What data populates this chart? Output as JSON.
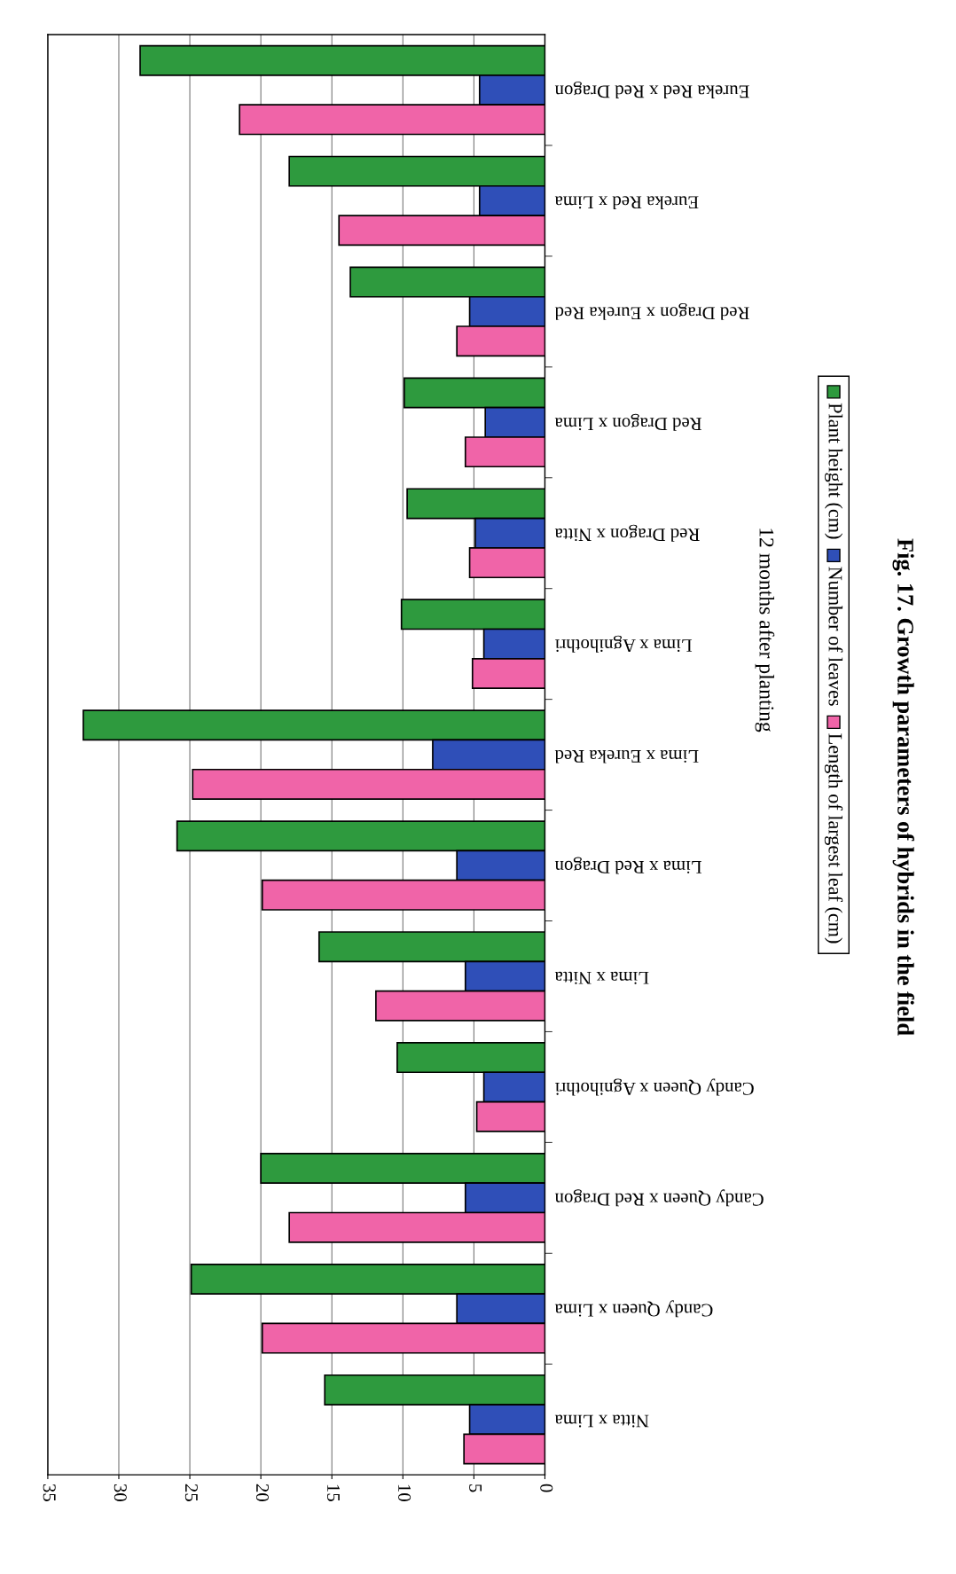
{
  "chart_data": {
    "type": "bar",
    "orientation": "horizontal",
    "title": "Fig. 17. Growth parameters of hybrids in the field",
    "ylabel": "12 months after planting",
    "categories": [
      "Eureka Red x Red Dragon",
      "Eureka Red x Lima",
      "Red Dragon x Eureka Red",
      "Red Dragon x Lima",
      "Red Dragon x Nitta",
      "Lima x Agnihothri",
      "Lima x Eureka Red",
      "Lima x Red Dragon",
      "Lima x Nitta",
      "Candy Queen x Agnihothri",
      "Candy Queen x Red Dragon",
      "Candy Queen x Lima",
      "Nitta x Lima"
    ],
    "series": [
      {
        "name": "Plant height (cm)",
        "color": "#2e9a3e",
        "values": [
          28.5,
          18.0,
          13.7,
          9.9,
          9.7,
          10.1,
          32.5,
          25.9,
          15.9,
          10.4,
          20.0,
          24.9,
          15.5
        ]
      },
      {
        "name": "Number of leaves",
        "color": "#2f4fb8",
        "values": [
          4.6,
          4.6,
          5.3,
          4.2,
          4.9,
          4.3,
          7.9,
          6.2,
          5.6,
          4.3,
          5.6,
          6.2,
          5.3
        ]
      },
      {
        "name": "Length of largest leaf (cm)",
        "color": "#f064a8",
        "values": [
          21.5,
          14.5,
          6.2,
          5.6,
          5.3,
          5.1,
          24.8,
          19.9,
          11.9,
          4.8,
          18.0,
          19.9,
          5.7
        ]
      }
    ],
    "xlim": [
      35,
      0
    ],
    "xticks": [
      0,
      5,
      10,
      15,
      20,
      25,
      30,
      35
    ],
    "grid": "x",
    "legend": "right"
  }
}
